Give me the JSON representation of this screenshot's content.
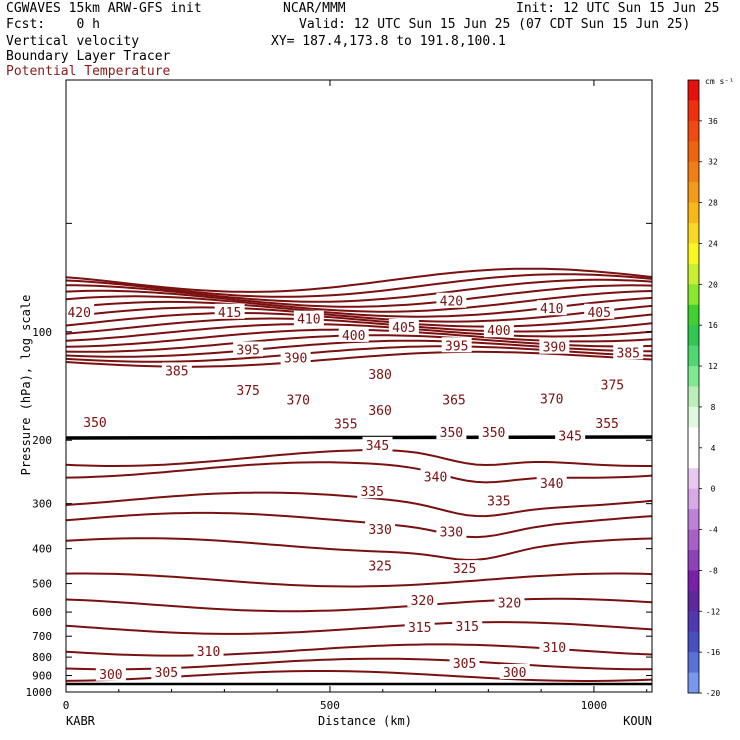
{
  "header": {
    "title": "CGWAVES 15km ARW-GFS init",
    "org": "NCAR/MMM",
    "init": "Init: 12 UTC Sun 15 Jun 25",
    "fcst": "Fcst:    0 h",
    "valid": "Valid: 12 UTC Sun 15 Jun 25 (07 CDT Sun 15 Jun 25)",
    "var1": "Vertical velocity",
    "xy": "XY= 187.4,173.8 to 191.8,100.1",
    "var2": "Boundary Layer Tracer",
    "var3": "Potential Temperature"
  },
  "colors": {
    "theta_contour": "#7a1010",
    "boundary_layer_line": "#000000",
    "theta_label": "#7a1010"
  },
  "colorbar": {
    "unit": "cm s⁻¹",
    "labels": [
      "36",
      "32",
      "28",
      "24",
      "20",
      "16",
      "12",
      "8",
      "4",
      "0",
      "-4",
      "-8",
      "-12",
      "-16",
      "-20"
    ],
    "colors": [
      "#e8100c",
      "#f0300c",
      "#f04a10",
      "#f06410",
      "#f07e14",
      "#f49a18",
      "#f8b818",
      "#f8d820",
      "#f8f820",
      "#c8f030",
      "#88e830",
      "#40d030",
      "#30c850",
      "#50d870",
      "#80e890",
      "#b8f0b8",
      "#e0f8e0",
      "#ffffff",
      "#ffffff",
      "#e8c8f0",
      "#d8a8e8",
      "#c080d8",
      "#a860c8",
      "#9040b8",
      "#7820a8",
      "#6028a0",
      "#5038b0",
      "#4850c0",
      "#5870d8",
      "#7898f0"
    ]
  },
  "chart_data": {
    "type": "contour",
    "title": "Potential Temperature",
    "xlabel": "Distance (km)",
    "ylabel": "Pressure (hPa), log scale",
    "xlim": [
      0,
      1110
    ],
    "x_ticks": [
      "0",
      "500",
      "1000"
    ],
    "x_tick_values": [
      0,
      500,
      1000
    ],
    "y_scale": "log",
    "ylim": [
      1000,
      20
    ],
    "y_ticks": [
      "100",
      "200",
      "300",
      "400",
      "500",
      "600",
      "700",
      "800",
      "900",
      "1000"
    ],
    "y_tick_values": [
      100,
      200,
      300,
      400,
      500,
      600,
      700,
      800,
      900,
      1000
    ],
    "endpoints": {
      "left": "KABR",
      "right": "KOUN"
    },
    "contour_interval": 5,
    "contour_labels": [
      {
        "value": "420",
        "x": 25,
        "p": 88
      },
      {
        "value": "415",
        "x": 310,
        "p": 88
      },
      {
        "value": "410",
        "x": 460,
        "p": 92
      },
      {
        "value": "420",
        "x": 730,
        "p": 82
      },
      {
        "value": "410",
        "x": 920,
        "p": 86
      },
      {
        "value": "405",
        "x": 1010,
        "p": 88
      },
      {
        "value": "405",
        "x": 640,
        "p": 97
      },
      {
        "value": "400",
        "x": 545,
        "p": 102
      },
      {
        "value": "400",
        "x": 820,
        "p": 99
      },
      {
        "value": "395",
        "x": 345,
        "p": 112
      },
      {
        "value": "395",
        "x": 740,
        "p": 109
      },
      {
        "value": "390",
        "x": 435,
        "p": 118
      },
      {
        "value": "390",
        "x": 925,
        "p": 110
      },
      {
        "value": "385",
        "x": 1065,
        "p": 114
      },
      {
        "value": "385",
        "x": 210,
        "p": 128
      },
      {
        "value": "380",
        "x": 595,
        "p": 131
      },
      {
        "value": "375",
        "x": 345,
        "p": 145
      },
      {
        "value": "375",
        "x": 1035,
        "p": 140
      },
      {
        "value": "370",
        "x": 440,
        "p": 154
      },
      {
        "value": "370",
        "x": 920,
        "p": 153
      },
      {
        "value": "365",
        "x": 735,
        "p": 154
      },
      {
        "value": "360",
        "x": 595,
        "p": 165
      },
      {
        "value": "355",
        "x": 530,
        "p": 180
      },
      {
        "value": "355",
        "x": 1025,
        "p": 179
      },
      {
        "value": "350",
        "x": 55,
        "p": 178
      },
      {
        "value": "350",
        "x": 730,
        "p": 190
      },
      {
        "value": "350",
        "x": 810,
        "p": 190
      },
      {
        "value": "345",
        "x": 590,
        "p": 206
      },
      {
        "value": "345",
        "x": 955,
        "p": 194
      },
      {
        "value": "340",
        "x": 700,
        "p": 252
      },
      {
        "value": "340",
        "x": 920,
        "p": 263
      },
      {
        "value": "335",
        "x": 580,
        "p": 277
      },
      {
        "value": "335",
        "x": 820,
        "p": 294
      },
      {
        "value": "330",
        "x": 595,
        "p": 353
      },
      {
        "value": "330",
        "x": 730,
        "p": 358
      },
      {
        "value": "325",
        "x": 595,
        "p": 445
      },
      {
        "value": "325",
        "x": 755,
        "p": 453
      },
      {
        "value": "320",
        "x": 675,
        "p": 555
      },
      {
        "value": "320",
        "x": 840,
        "p": 565
      },
      {
        "value": "315",
        "x": 670,
        "p": 660
      },
      {
        "value": "315",
        "x": 760,
        "p": 655
      },
      {
        "value": "310",
        "x": 270,
        "p": 770
      },
      {
        "value": "310",
        "x": 925,
        "p": 750
      },
      {
        "value": "305",
        "x": 190,
        "p": 880
      },
      {
        "value": "305",
        "x": 755,
        "p": 830
      },
      {
        "value": "300",
        "x": 85,
        "p": 890
      },
      {
        "value": "300",
        "x": 850,
        "p": 880
      }
    ]
  }
}
